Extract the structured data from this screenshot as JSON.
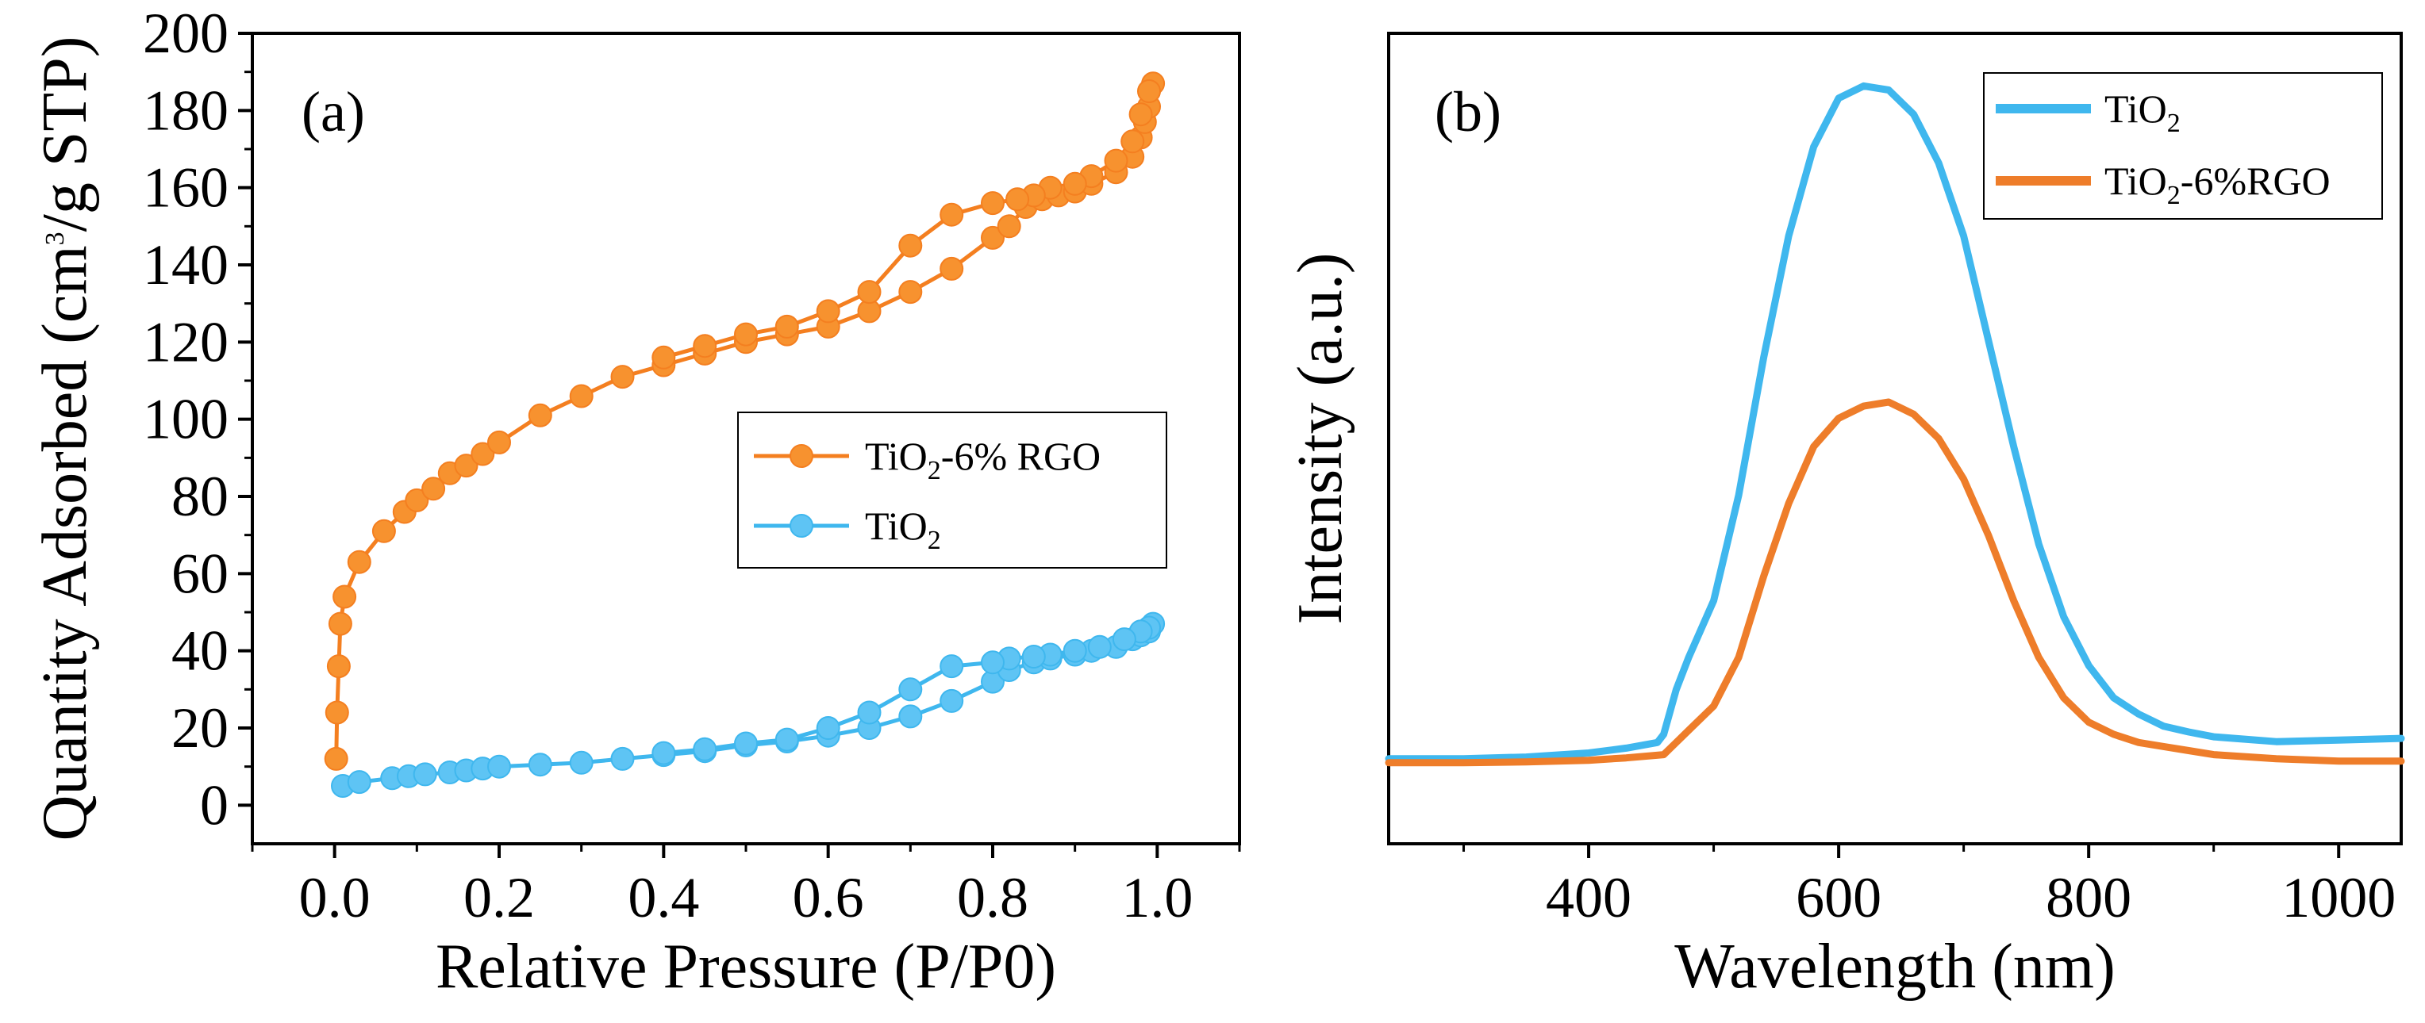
{
  "figure": {
    "panel_a_label": "(a)",
    "panel_b_label": "(b)"
  },
  "chart_data": [
    {
      "type": "line",
      "panel": "(a)",
      "xlabel": "Relative Pressure (P/P0)",
      "ylabel_main": "Quantity Adsorbed (cm",
      "ylabel_sup": "3",
      "ylabel_tail": "/g STP)",
      "xlim": [
        -0.1,
        1.1
      ],
      "ylim": [
        -10,
        200
      ],
      "xticks": [
        0.0,
        0.2,
        0.4,
        0.6,
        0.8,
        1.0
      ],
      "xtick_labels": [
        "0.0",
        "0.2",
        "0.4",
        "0.6",
        "0.8",
        "1.0"
      ],
      "yticks": [
        0,
        20,
        40,
        60,
        80,
        100,
        120,
        140,
        160,
        180,
        200
      ],
      "ytick_labels": [
        "0",
        "20",
        "40",
        "60",
        "80",
        "100",
        "120",
        "140",
        "160",
        "180",
        "200"
      ],
      "legend_position": "center-right",
      "series": [
        {
          "name": "TiO2-6% RGO",
          "label_main": "TiO",
          "label_sub": "2",
          "label_tail": "-6% RGO",
          "color": "#F47F20",
          "marker_color": "#F7922F",
          "x": [
            0.002,
            0.003,
            0.005,
            0.007,
            0.012,
            0.03,
            0.06,
            0.085,
            0.1,
            0.12,
            0.14,
            0.16,
            0.18,
            0.2,
            0.25,
            0.3,
            0.35,
            0.4,
            0.45,
            0.5,
            0.55,
            0.6,
            0.65,
            0.7,
            0.75,
            0.8,
            0.82,
            0.84,
            0.86,
            0.88,
            0.9,
            0.92,
            0.95,
            0.97,
            0.98,
            0.985,
            0.99,
            0.995,
            0.99,
            0.98,
            0.97,
            0.95,
            0.92,
            0.9,
            0.87,
            0.85,
            0.83,
            0.8,
            0.75,
            0.7,
            0.65,
            0.6,
            0.55,
            0.5,
            0.45,
            0.4
          ],
          "y": [
            12,
            24,
            36,
            47,
            54,
            63,
            71,
            76,
            79,
            82,
            86,
            88,
            91,
            94,
            101,
            106,
            111,
            114,
            117,
            120,
            122,
            124,
            128,
            133,
            139,
            147,
            150,
            155,
            157,
            158,
            159,
            161,
            164,
            168,
            173,
            177,
            181,
            187,
            185,
            179,
            172,
            167,
            163,
            161,
            160,
            158,
            157,
            156,
            153,
            145,
            133,
            128,
            124,
            122,
            119,
            116
          ]
        },
        {
          "name": "TiO2",
          "label_main": "TiO",
          "label_sub": "2",
          "label_tail": "",
          "color": "#3FB7EE",
          "marker_color": "#5EC4F4",
          "x": [
            0.01,
            0.03,
            0.07,
            0.09,
            0.11,
            0.14,
            0.16,
            0.18,
            0.2,
            0.25,
            0.3,
            0.35,
            0.4,
            0.45,
            0.5,
            0.55,
            0.6,
            0.65,
            0.7,
            0.75,
            0.8,
            0.82,
            0.85,
            0.87,
            0.9,
            0.92,
            0.95,
            0.97,
            0.98,
            0.99,
            0.995,
            0.99,
            0.98,
            0.96,
            0.93,
            0.9,
            0.87,
            0.85,
            0.82,
            0.8,
            0.75,
            0.7,
            0.65,
            0.6,
            0.55,
            0.5,
            0.45,
            0.4
          ],
          "y": [
            5,
            6,
            7,
            7.5,
            8,
            8.5,
            9,
            9.5,
            10,
            10.5,
            11,
            12,
            13,
            14,
            15.5,
            16.5,
            18,
            20,
            23,
            27,
            32,
            35,
            37,
            38,
            39,
            40,
            41,
            43,
            44,
            45,
            47,
            46,
            45,
            43,
            41,
            40,
            39,
            38.5,
            38,
            37,
            36,
            30,
            24,
            20,
            17,
            16,
            14.5,
            13.5
          ]
        }
      ]
    },
    {
      "type": "line",
      "panel": "(b)",
      "xlabel": "Wavelength (nm)",
      "ylabel_main": "Intensity (a.u.)",
      "xlim": [
        240,
        1050
      ],
      "ylim": [
        0,
        1
      ],
      "xticks": [
        400,
        600,
        800,
        1000
      ],
      "xtick_labels": [
        "400",
        "600",
        "800",
        "1000"
      ],
      "legend_position": "top-right",
      "series": [
        {
          "name": "TiO2",
          "label_main": "TiO",
          "label_sub": "2",
          "label_tail": "",
          "color": "#3FB7EE",
          "x": [
            240,
            300,
            350,
            400,
            430,
            455,
            460,
            470,
            480,
            500,
            520,
            540,
            560,
            580,
            600,
            620,
            640,
            660,
            680,
            700,
            720,
            740,
            760,
            780,
            800,
            820,
            840,
            860,
            880,
            900,
            950,
            1000,
            1050
          ],
          "y": [
            0.105,
            0.105,
            0.107,
            0.112,
            0.118,
            0.125,
            0.135,
            0.19,
            0.23,
            0.3,
            0.43,
            0.6,
            0.75,
            0.86,
            0.92,
            0.935,
            0.93,
            0.9,
            0.84,
            0.75,
            0.62,
            0.49,
            0.37,
            0.28,
            0.22,
            0.18,
            0.16,
            0.145,
            0.138,
            0.132,
            0.126,
            0.128,
            0.13
          ]
        },
        {
          "name": "TiO2-6%RGO",
          "label_main": "TiO",
          "label_sub": "2",
          "label_tail": "-6%RGO",
          "color": "#EE7D2A",
          "x": [
            240,
            300,
            350,
            400,
            430,
            460,
            470,
            480,
            500,
            520,
            540,
            560,
            580,
            600,
            620,
            640,
            660,
            680,
            700,
            720,
            740,
            760,
            780,
            800,
            820,
            840,
            860,
            880,
            900,
            950,
            1000,
            1050
          ],
          "y": [
            0.1,
            0.1,
            0.101,
            0.103,
            0.106,
            0.11,
            0.125,
            0.14,
            0.17,
            0.23,
            0.33,
            0.42,
            0.49,
            0.525,
            0.54,
            0.545,
            0.53,
            0.5,
            0.45,
            0.38,
            0.3,
            0.23,
            0.18,
            0.15,
            0.135,
            0.125,
            0.12,
            0.115,
            0.11,
            0.105,
            0.102,
            0.102
          ]
        }
      ]
    }
  ]
}
